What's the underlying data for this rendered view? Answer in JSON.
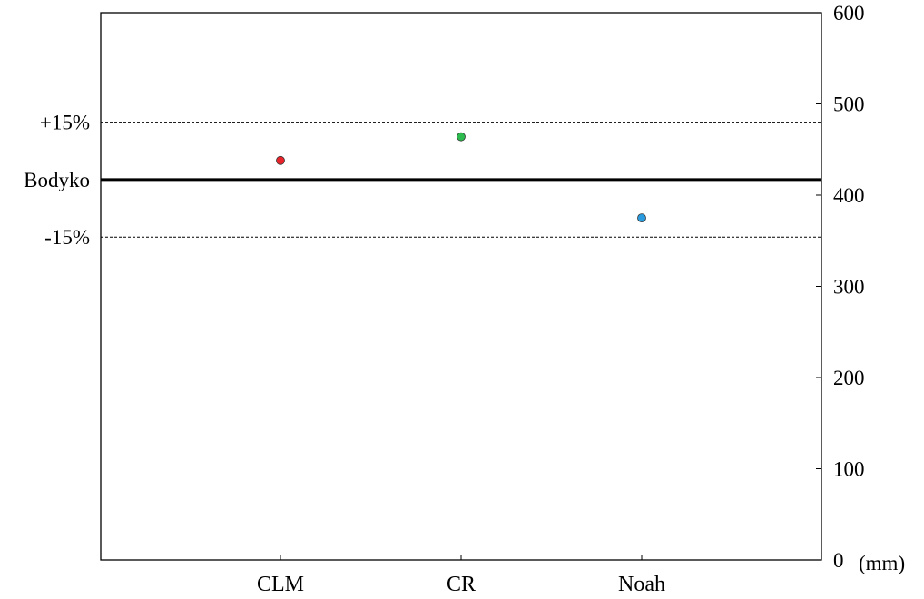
{
  "chart_data": {
    "type": "scatter",
    "title": "",
    "xlabel": "",
    "ylabel": "",
    "categories": [
      "CLM",
      "CR",
      "Noah"
    ],
    "series": [
      {
        "values": [
          438,
          464,
          375
        ]
      }
    ],
    "point_colors": [
      "#e8232a",
      "#2dbb4f",
      "#2b9be0"
    ],
    "y_axis": {
      "position": "right",
      "ylim": [
        0,
        600
      ],
      "ticks": [
        0,
        100,
        200,
        300,
        400,
        500,
        600
      ],
      "tick_labels": [
        "0",
        "100",
        "200",
        "300",
        "400",
        "500",
        "600"
      ],
      "unit": "(mm)"
    },
    "reference_lines": [
      {
        "label": "+15%",
        "value": 480,
        "style": "dashed"
      },
      {
        "label": "Bodyko",
        "value": 417,
        "style": "solid"
      },
      {
        "label": "-15%",
        "value": 354,
        "style": "dashed"
      }
    ],
    "grid": false,
    "legend": "none"
  }
}
